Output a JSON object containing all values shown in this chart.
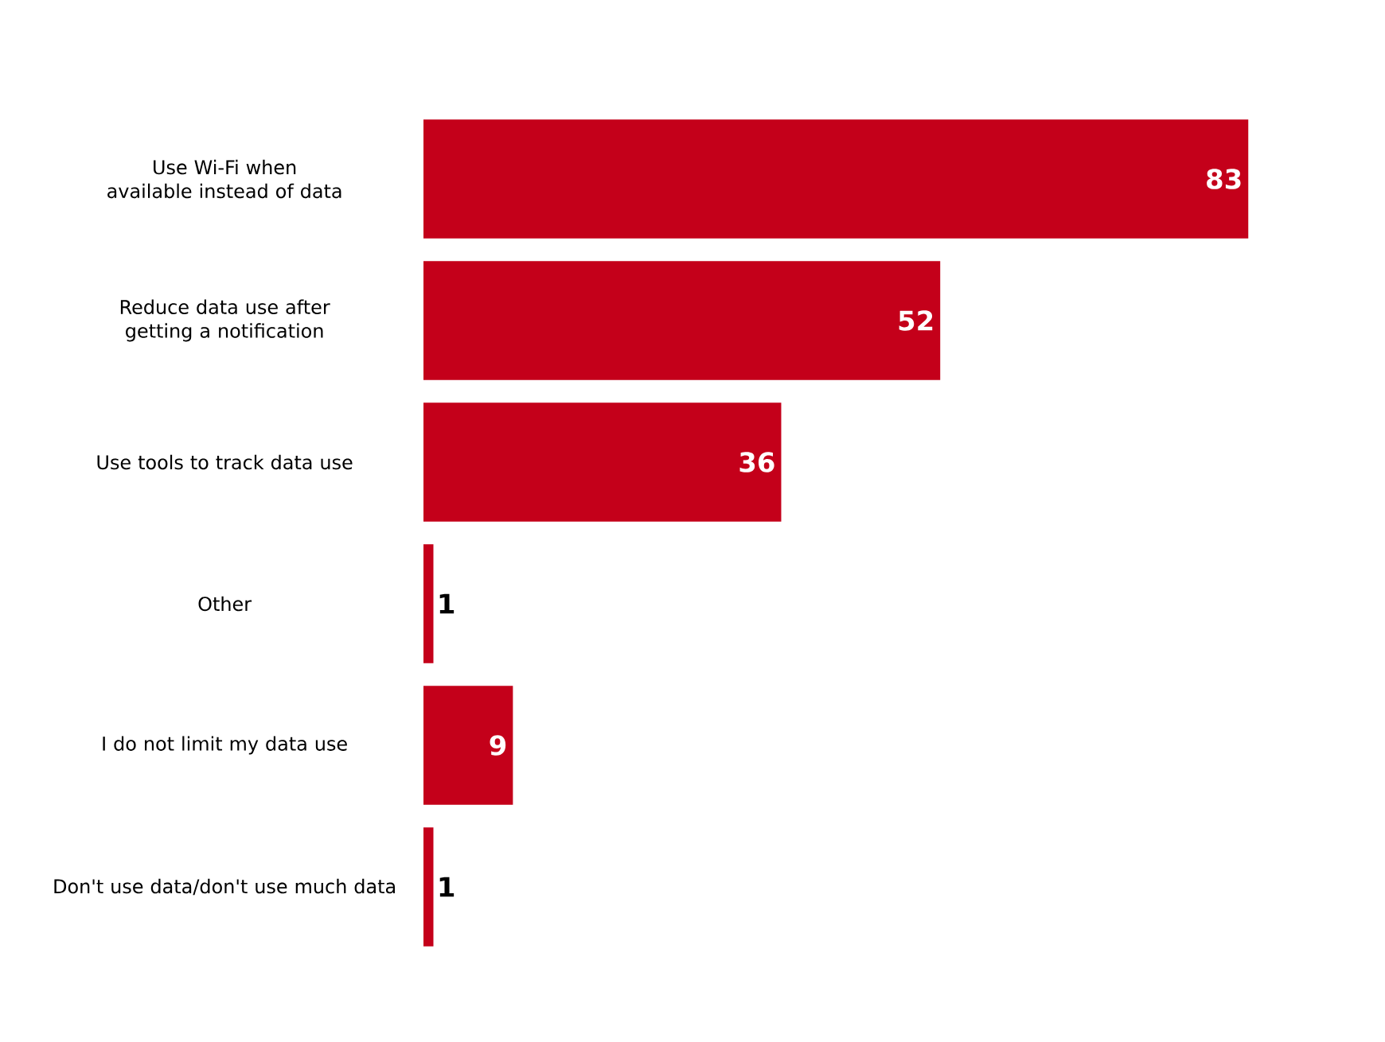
{
  "chart_data": {
    "type": "bar",
    "orientation": "horizontal",
    "categories": [
      "Use Wi-Fi when available instead of data",
      "Reduce data use after getting a notification",
      "Use tools to track data use",
      "Other",
      "I do not limit my data use",
      "Don't use data/don't use much data"
    ],
    "values": [
      83,
      52,
      36,
      1,
      9,
      1
    ],
    "color": "#c4001a",
    "tick_labels": "y",
    "data_labels": true
  }
}
